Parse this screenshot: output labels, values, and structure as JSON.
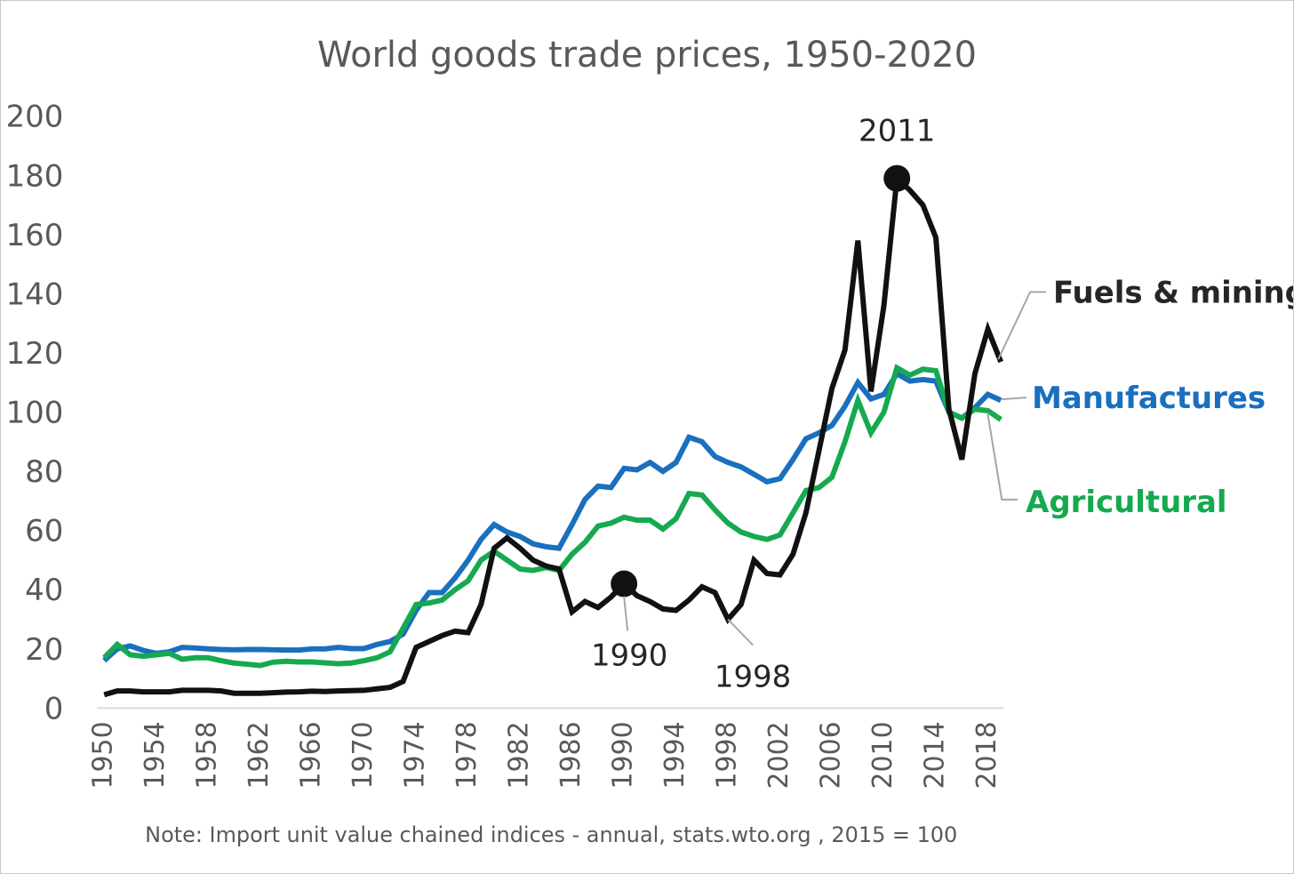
{
  "chart_data": {
    "type": "line",
    "title": "World goods trade prices, 1950-2020",
    "note": "Note: Import unit value chained indices - annual, stats.wto.org , 2015 = 100",
    "xlabel": "",
    "ylabel": "",
    "xlim": [
      1950,
      2019
    ],
    "ylim": [
      0,
      200
    ],
    "y_ticks": [
      "0",
      "20",
      "40",
      "60",
      "80",
      "100",
      "120",
      "140",
      "160",
      "180",
      "200"
    ],
    "x_ticks": [
      "1950",
      "1954",
      "1958",
      "1962",
      "1966",
      "1970",
      "1974",
      "1978",
      "1982",
      "1986",
      "1990",
      "1994",
      "1998",
      "2002",
      "2006",
      "2010",
      "2014",
      "2018"
    ],
    "grid": false,
    "x": [
      1950,
      1951,
      1952,
      1953,
      1954,
      1955,
      1956,
      1957,
      1958,
      1959,
      1960,
      1961,
      1962,
      1963,
      1964,
      1965,
      1966,
      1967,
      1968,
      1969,
      1970,
      1971,
      1972,
      1973,
      1974,
      1975,
      1976,
      1977,
      1978,
      1979,
      1980,
      1981,
      1982,
      1983,
      1984,
      1985,
      1986,
      1987,
      1988,
      1989,
      1990,
      1991,
      1992,
      1993,
      1994,
      1995,
      1996,
      1997,
      1998,
      1999,
      2000,
      2001,
      2002,
      2003,
      2004,
      2005,
      2006,
      2007,
      2008,
      2009,
      2010,
      2011,
      2012,
      2013,
      2014,
      2015,
      2016,
      2017,
      2018,
      2019
    ],
    "series": [
      {
        "name": "Manufactures",
        "color": "#1a6fbe",
        "values": [
          16,
          20,
          21,
          19.5,
          18.5,
          19,
          20.5,
          20.3,
          20,
          19.8,
          19.7,
          19.8,
          19.8,
          19.7,
          19.6,
          19.6,
          20,
          20,
          20.5,
          20.1,
          20.1,
          21.5,
          22.5,
          25,
          33,
          39,
          39,
          44,
          50,
          57,
          62,
          59.5,
          58,
          55.5,
          54.5,
          54,
          62,
          70.5,
          75,
          74.5,
          81,
          80.5,
          83,
          80,
          83,
          91.5,
          90,
          85,
          83,
          81.5,
          79,
          76.5,
          77.5,
          84,
          91,
          93,
          95.5,
          102,
          110,
          104.5,
          106,
          113,
          110.5,
          111,
          110.5,
          100,
          98,
          101.5,
          106,
          104
        ]
      },
      {
        "name": "Agricultural",
        "color": "#16a94f",
        "values": [
          17,
          21.5,
          18,
          17.5,
          18,
          18.5,
          16.5,
          17,
          17,
          16,
          15.2,
          14.8,
          14.4,
          15.5,
          15.8,
          15.6,
          15.6,
          15.3,
          15,
          15.2,
          16,
          17,
          19,
          27,
          35,
          35.5,
          36.5,
          40,
          43,
          50,
          53,
          50,
          47,
          46.5,
          47.5,
          46.5,
          52,
          56,
          61.5,
          62.5,
          64.5,
          63.5,
          63.5,
          60.5,
          64,
          72.5,
          72,
          67,
          62.5,
          59.5,
          58,
          57,
          58.5,
          66,
          73.5,
          74.5,
          78,
          90,
          104,
          93,
          100,
          115,
          112.5,
          114.5,
          114,
          100,
          98,
          101,
          100.5,
          97.5
        ]
      },
      {
        "name": "Fuels & mining",
        "color": "#111111",
        "values": [
          4.5,
          5.8,
          5.8,
          5.5,
          5.5,
          5.5,
          6,
          6,
          6,
          5.8,
          5,
          5,
          5,
          5.2,
          5.4,
          5.5,
          5.7,
          5.6,
          5.8,
          5.9,
          6,
          6.5,
          7,
          9,
          20.5,
          22.5,
          24.5,
          26,
          25.5,
          35,
          54,
          57.5,
          54,
          50,
          48,
          47,
          32.5,
          36,
          34,
          37.5,
          42,
          38,
          36,
          33.5,
          33,
          36.5,
          41,
          39,
          30,
          35,
          50,
          45.5,
          45,
          52,
          66,
          87,
          108,
          121,
          158,
          107,
          136,
          179,
          175,
          170,
          159,
          101,
          84,
          113,
          128,
          117
        ]
      }
    ],
    "annotations": [
      {
        "label": "2011",
        "year": 2011,
        "value": 179
      },
      {
        "label": "1990",
        "year": 1990,
        "value": 42
      },
      {
        "label": "1998",
        "year": 1998,
        "value": 30
      }
    ],
    "legend": {
      "placement": "right, end of lines"
    },
    "legend_labels": {
      "fuels": "Fuels & mining",
      "manufactures": "Manufactures",
      "agricultural": "Agricultural"
    }
  }
}
